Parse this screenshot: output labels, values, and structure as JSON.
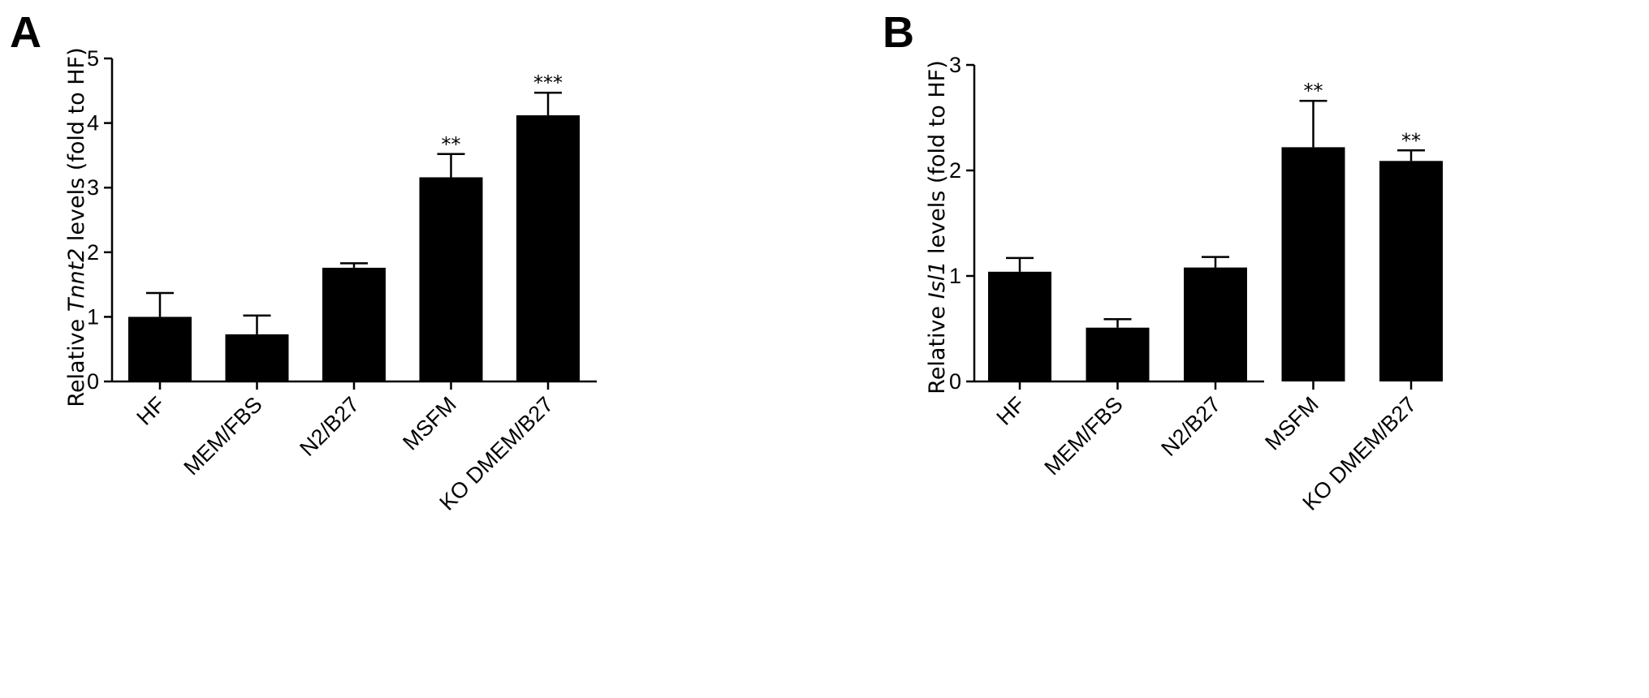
{
  "chart_data": [
    {
      "panel": "A",
      "type": "bar",
      "categories": [
        "HF",
        "MEM/FBS",
        "N2/B27",
        "MSFM",
        "KO DMEM/B27"
      ],
      "values": [
        1.0,
        0.73,
        1.76,
        3.16,
        4.12
      ],
      "errors": [
        0.37,
        0.29,
        0.07,
        0.36,
        0.35
      ],
      "significance": [
        "",
        "",
        "",
        "**",
        "***"
      ],
      "ylabel_prefix": "Relative ",
      "ylabel_gene": "Tnnt2",
      "ylabel_suffix": " levels (fold to HF)",
      "ylim": [
        0,
        5
      ],
      "yticks": [
        "0",
        "1",
        "2",
        "3",
        "4",
        "5"
      ],
      "bar_color": "#000000"
    },
    {
      "panel": "B",
      "type": "bar",
      "categories": [
        "HF",
        "MEM/FBS",
        "N2/B27",
        "MSFM",
        "KO DMEM/B27"
      ],
      "values": [
        1.04,
        0.51,
        1.08,
        2.22,
        2.09
      ],
      "errors": [
        0.13,
        0.08,
        0.1,
        0.44,
        0.1
      ],
      "significance": [
        "",
        "",
        "",
        "**",
        "**"
      ],
      "ylabel_prefix": "Relative ",
      "ylabel_gene": "Isl1",
      "ylabel_suffix": " levels (fold to HF)",
      "ylim": [
        0,
        3
      ],
      "yticks": [
        "0",
        "1",
        "2",
        "3"
      ],
      "bar_color": "#000000"
    }
  ]
}
